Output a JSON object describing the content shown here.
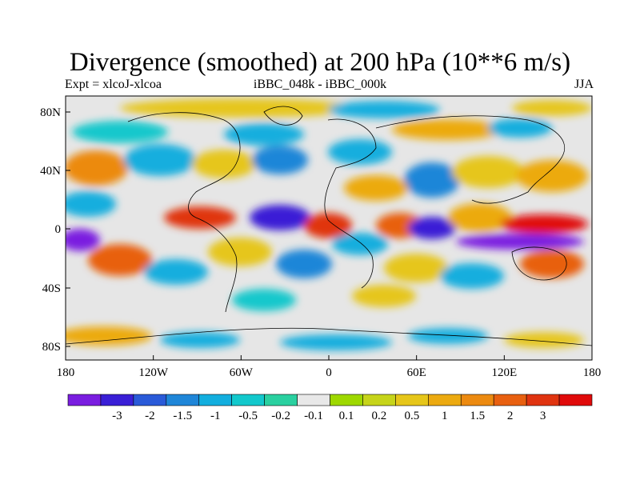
{
  "header": {
    "title": "Divergence (smoothed) at 200 hPa (10**6 m/s)",
    "left_label": "Expt = xlcoJ-xlcoa",
    "center_label": "iBBC_048k - iBBC_000k",
    "right_label": "JJA"
  },
  "axes": {
    "lat_labels": [
      "80N",
      "40N",
      "0",
      "40S",
      "80S"
    ],
    "lon_labels": [
      "180",
      "120W",
      "60W",
      "0",
      "60E",
      "120E",
      "180"
    ]
  },
  "colorbar": {
    "colors": [
      "#7a1ee0",
      "#3a1fd6",
      "#2a5ad8",
      "#1f86d8",
      "#12aede",
      "#12c8cc",
      "#2ad0a0",
      "#e8e8e8",
      "#9ed800",
      "#c6d41a",
      "#e6c61a",
      "#ecaa10",
      "#ec8a10",
      "#e86010",
      "#e03410",
      "#e00a0a"
    ],
    "labels": [
      "-3",
      "-2",
      "-1.5",
      "-1",
      "-0.5",
      "-0.2",
      "-0.1",
      "0.1",
      "0.2",
      "0.5",
      "1",
      "1.5",
      "2",
      "3"
    ]
  },
  "map": {
    "background_color": "#e6e6e6",
    "coastline_color": "#000000"
  }
}
